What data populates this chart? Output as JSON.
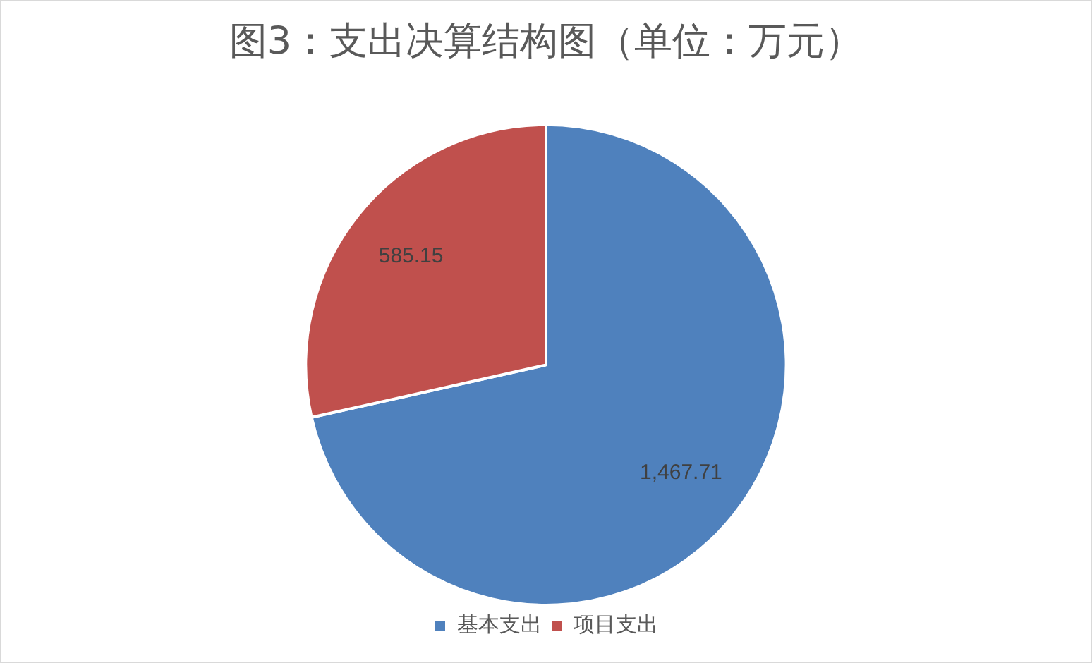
{
  "chart_data": {
    "type": "pie",
    "title": "图3：支出决算结构图（单位：万元）",
    "categories": [
      "基本支出",
      "项目支出"
    ],
    "values": [
      1467.71,
      585.15
    ],
    "colors": [
      "#4f81bd",
      "#c0504d"
    ],
    "value_labels": [
      "1,467.71",
      "585.15"
    ],
    "legend": "bottom"
  }
}
